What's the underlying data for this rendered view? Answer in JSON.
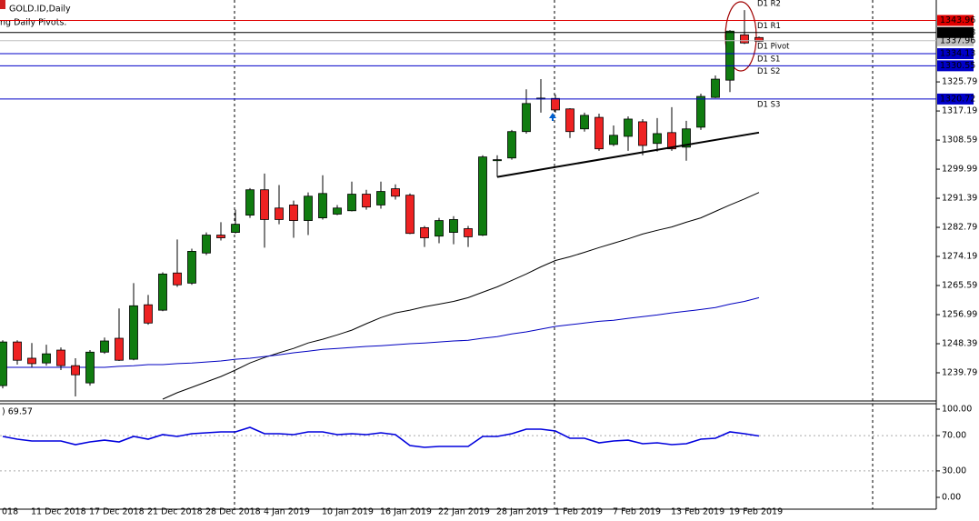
{
  "chart_data": [
    {
      "type": "candlestick",
      "title": "GOLD.ID,Daily",
      "subtitle": "ng Daily Pivots.",
      "categories": [
        "018",
        null,
        "11 Dec 2018",
        null,
        null,
        null,
        "17 Dec 2018",
        null,
        null,
        null,
        "21 Dec 2018",
        null,
        null,
        null,
        "28 Dec 2018",
        null,
        null,
        null,
        "4 Jan 2019",
        null,
        null,
        null,
        "10 Jan 2019",
        null,
        null,
        null,
        "16 Jan 2019",
        null,
        null,
        null,
        "22 Jan 2019",
        null,
        null,
        null,
        "28 Jan 2019",
        null,
        null,
        null,
        "1 Feb 2019",
        null,
        null,
        null,
        "7 Feb 2019",
        null,
        null,
        null,
        "13 Feb 2019",
        null,
        null,
        null,
        "19 Feb 2019",
        null,
        null
      ],
      "open": [
        1236.0,
        1248.9,
        1244.1,
        1242.7,
        1246.5,
        1241.9,
        1236.8,
        1245.9,
        1250.0,
        1243.8,
        1259.9,
        1258.3,
        1269.3,
        1266.3,
        1275.2,
        1280.5,
        1281.3,
        1286.4,
        1293.9,
        1288.5,
        1289.4,
        1284.8,
        1285.6,
        1286.7,
        1287.7,
        1292.6,
        1289.4,
        1294.2,
        1292.3,
        1282.7,
        1280.2,
        1281.3,
        1282.4,
        1280.5,
        1302.5,
        1303.3,
        1311.1,
        1320.8,
        1320.9,
        1317.8,
        1311.9,
        1315.3,
        1307.3,
        1309.7,
        1314.0,
        1307.6,
        1310.8,
        1306.5,
        1312.4,
        1321.2,
        1326.3,
        1339.7,
        1338.9
      ],
      "high": [
        1249.4,
        1249.4,
        1248.6,
        1248.1,
        1247.3,
        1244.1,
        1246.5,
        1250.2,
        1258.8,
        1266.3,
        1262.8,
        1269.5,
        1279.2,
        1276.5,
        1281.3,
        1284.3,
        1288.0,
        1294.4,
        1298.7,
        1295.3,
        1290.7,
        1293.1,
        1298.2,
        1289.4,
        1296.3,
        1293.9,
        1296.3,
        1295.5,
        1292.8,
        1283.2,
        1285.6,
        1286.1,
        1283.2,
        1304.1,
        1304.1,
        1311.6,
        1323.6,
        1326.6,
        1322.0,
        1318.0,
        1316.7,
        1316.4,
        1312.9,
        1315.6,
        1314.8,
        1315.1,
        1318.3,
        1314.3,
        1322.3,
        1327.7,
        1341.1,
        1347.0,
        1339.2
      ],
      "low": [
        1235.2,
        1242.2,
        1241.4,
        1241.9,
        1240.6,
        1232.8,
        1236.0,
        1245.4,
        1243.3,
        1243.5,
        1254.0,
        1258.0,
        1265.2,
        1265.8,
        1274.6,
        1278.9,
        1281.0,
        1285.6,
        1276.8,
        1283.7,
        1279.7,
        1280.5,
        1285.1,
        1286.4,
        1287.5,
        1288.0,
        1288.3,
        1291.0,
        1280.8,
        1277.0,
        1278.1,
        1277.8,
        1277.0,
        1280.2,
        1297.7,
        1302.8,
        1310.5,
        1316.7,
        1316.7,
        1309.2,
        1311.1,
        1305.4,
        1306.8,
        1305.4,
        1304.1,
        1305.2,
        1305.4,
        1302.5,
        1311.6,
        1321.0,
        1322.8,
        1337.0,
        1337.6
      ],
      "close": [
        1248.9,
        1243.5,
        1242.5,
        1245.4,
        1241.9,
        1239.2,
        1245.9,
        1249.2,
        1243.5,
        1259.6,
        1254.5,
        1269.0,
        1265.8,
        1275.7,
        1280.5,
        1279.7,
        1283.7,
        1293.9,
        1285.1,
        1285.1,
        1284.8,
        1292.0,
        1292.8,
        1288.5,
        1292.6,
        1288.8,
        1293.4,
        1292.0,
        1281.0,
        1279.7,
        1284.8,
        1285.1,
        1280.0,
        1303.6,
        1302.8,
        1311.1,
        1319.4,
        1321.0,
        1317.5,
        1311.1,
        1315.9,
        1306.0,
        1310.0,
        1314.8,
        1307.0,
        1310.5,
        1306.0,
        1311.9,
        1321.5,
        1326.6,
        1340.8,
        1337.3,
        1337.8
      ],
      "up_color": "#107c10",
      "down_color": "#ee2222",
      "series": [
        {
          "color": "#000000",
          "values": [
            null,
            null,
            null,
            null,
            null,
            null,
            null,
            null,
            null,
            null,
            null,
            1232.0,
            1233.9,
            1235.5,
            1237.1,
            1238.7,
            1240.6,
            1242.7,
            1244.3,
            1245.7,
            1247.0,
            1248.6,
            1249.7,
            1251.0,
            1252.4,
            1254.3,
            1256.1,
            1257.5,
            1258.3,
            1259.3,
            1260.1,
            1260.9,
            1262.0,
            1263.6,
            1265.2,
            1267.1,
            1269.0,
            1271.1,
            1273.0,
            1274.1,
            1275.4,
            1276.8,
            1278.1,
            1279.4,
            1280.8,
            1281.9,
            1282.9,
            1284.3,
            1285.6,
            1287.5,
            1289.4,
            1291.2,
            1293.1
          ]
        },
        {
          "color": "#0000c0",
          "values": [
            1241.4,
            1241.4,
            1241.4,
            1241.4,
            1241.4,
            1241.4,
            1241.4,
            1241.4,
            1241.7,
            1241.9,
            1242.2,
            1242.2,
            1242.5,
            1242.7,
            1243.0,
            1243.3,
            1243.8,
            1244.1,
            1244.6,
            1245.1,
            1245.7,
            1246.2,
            1246.7,
            1247.0,
            1247.3,
            1247.6,
            1247.8,
            1248.1,
            1248.4,
            1248.6,
            1248.9,
            1249.2,
            1249.4,
            1250.0,
            1250.5,
            1251.3,
            1251.9,
            1252.7,
            1253.5,
            1254.0,
            1254.5,
            1255.0,
            1255.3,
            1255.9,
            1256.4,
            1256.9,
            1257.5,
            1258.0,
            1258.5,
            1259.1,
            1260.1,
            1260.9,
            1262.0
          ]
        }
      ],
      "trendline": {
        "x": [
          34,
          52
        ],
        "values": [
          1297.7,
          1310.8
        ],
        "color": "#000000"
      },
      "levels": [
        {
          "name": "D1 R1",
          "value": 1343.96,
          "color": "#e00000",
          "label_color": "#e00000"
        },
        {
          "name": "D1 Pivot",
          "value": 1337.96,
          "color": "#c0c0c0",
          "label_color": "#000000"
        },
        {
          "name": "D1 S1",
          "value": 1334.13,
          "color": "#0000c8",
          "label_color": "#0000c8"
        },
        {
          "name": "D1 S2",
          "value": 1330.55,
          "color": "#0000c8",
          "label_color": "#0000c8"
        },
        {
          "name": "D1 S3",
          "value": 1320.72,
          "color": "#0000c8",
          "label_color": "#0000c8"
        }
      ],
      "last_price": 1340.38,
      "annotations": [
        {
          "text": "D1 R2",
          "value": 1348.9,
          "color": "#e00000"
        }
      ],
      "ylim": [
        1231.46,
        1350.0
      ],
      "yticks": [
        1239.79,
        1248.39,
        1256.99,
        1265.59,
        1274.19,
        1282.79,
        1291.39,
        1299.99,
        1308.59,
        1317.19,
        1325.79
      ]
    },
    {
      "type": "line",
      "title": ") 69.57",
      "color": "#0000dd",
      "values": [
        69.1,
        66.0,
        63.9,
        63.9,
        63.9,
        59.8,
        62.9,
        64.9,
        62.9,
        69.1,
        66.0,
        71.1,
        69.1,
        72.2,
        73.2,
        74.2,
        74.2,
        79.4,
        72.2,
        72.2,
        71.1,
        74.2,
        74.2,
        71.1,
        72.2,
        71.1,
        73.2,
        71.1,
        58.8,
        56.7,
        57.7,
        57.7,
        57.7,
        69.1,
        69.1,
        72.2,
        77.3,
        77.3,
        75.3,
        67.0,
        67.0,
        61.9,
        63.9,
        64.9,
        60.8,
        61.9,
        59.8,
        60.8,
        66.0,
        67.0,
        74.2,
        72.2,
        69.57
      ],
      "levels": [
        70,
        30
      ],
      "ylim": [
        -13.4,
        106.2
      ],
      "yticks": [
        {
          "value": 100,
          "label": "100.00"
        },
        {
          "value": 70,
          "label": "70.00"
        },
        {
          "value": 30,
          "label": "30.00"
        },
        {
          "value": 0,
          "label": "0.00"
        }
      ]
    }
  ]
}
